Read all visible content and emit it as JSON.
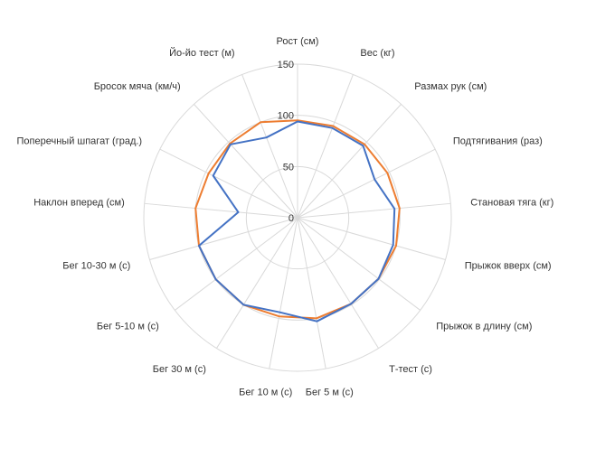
{
  "chart_data": {
    "type": "radar",
    "categories": [
      "Рост (см)",
      "Вес (кг)",
      "Размах рук (см)",
      "Подтягивания (раз)",
      "Становая тяга (кг)",
      "Прыжок вверх (см)",
      "Прыжок в длину (см)",
      "Т-тест (с)",
      "Бег 5 м (с)",
      "Бег 10 м (с)",
      "Бег 30 м (с)",
      "Бег 5-10 м (с)",
      "Бег 10-30 м (с)",
      "Наклон вперед (см)",
      "Поперечный шпагат (град.)",
      "Бросок мяча (км/ч)",
      "Йо-йо тест (м)"
    ],
    "series": [
      {
        "values": [
          94,
          94,
          95,
          84,
          95,
          97,
          99,
          99,
          103,
          94,
          100,
          100,
          100,
          58,
          92,
          97,
          84
        ],
        "color": "#4472c4"
      },
      {
        "values": [
          95,
          96,
          97,
          98,
          100,
          100,
          99,
          99,
          100,
          98,
          100,
          100,
          100,
          100,
          97,
          98,
          100
        ],
        "color": "#ed7d31"
      }
    ],
    "ticks": [
      "0",
      "50",
      "100",
      "150"
    ],
    "rlim": [
      0,
      150
    ],
    "grid": true,
    "legend": "none"
  }
}
